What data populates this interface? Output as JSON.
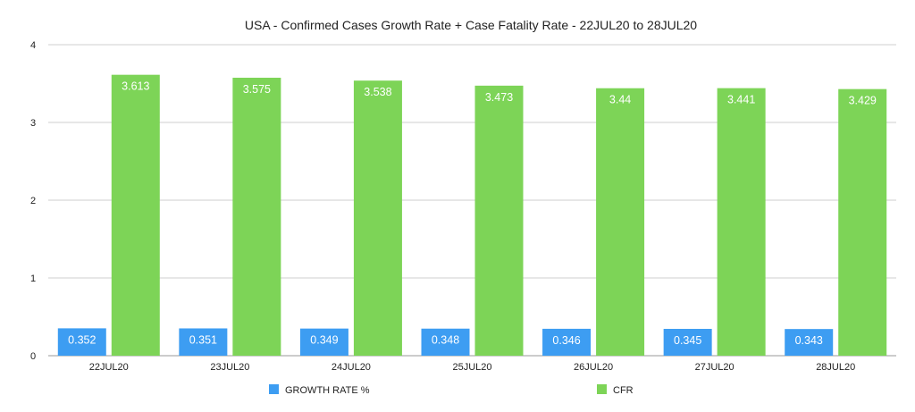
{
  "chart_data": {
    "type": "bar",
    "title": "USA - Confirmed Cases Growth Rate + Case Fatality Rate - 22JUL20 to 28JUL20",
    "xlabel": "",
    "ylabel": "",
    "categories": [
      "22JUL20",
      "23JUL20",
      "24JUL20",
      "25JUL20",
      "26JUL20",
      "27JUL20",
      "28JUL20"
    ],
    "series": [
      {
        "name": "GROWTH RATE %",
        "color": "#3d9df2",
        "values": [
          0.352,
          0.351,
          0.349,
          0.348,
          0.346,
          0.345,
          0.343
        ],
        "labels": [
          "0.352",
          "0.351",
          "0.349",
          "0.348",
          "0.346",
          "0.345",
          "0.343"
        ]
      },
      {
        "name": "CFR",
        "color": "#7dd457",
        "values": [
          3.613,
          3.575,
          3.538,
          3.473,
          3.44,
          3.441,
          3.429
        ],
        "labels": [
          "3.613",
          "3.575",
          "3.538",
          "3.473",
          "3.44",
          "3.441",
          "3.429"
        ]
      }
    ],
    "ylim": [
      0,
      4
    ],
    "yticks": [
      "0",
      "1",
      "2",
      "3",
      "4"
    ],
    "grid": true,
    "legend_position": "bottom"
  }
}
